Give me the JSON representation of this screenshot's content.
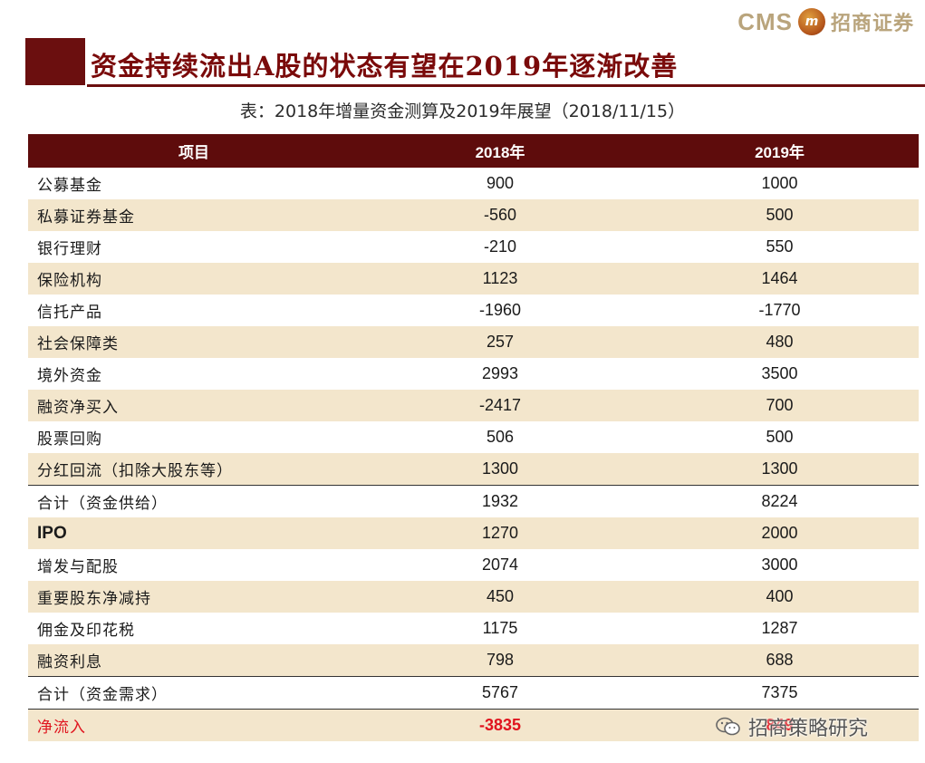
{
  "logo": {
    "latin": "CMS",
    "mark": "m",
    "chinese": "招商证券"
  },
  "title": "资金持续流出A股的状态有望在2019年逐渐改善",
  "subtitle": "表：2018年增量资金测算及2019年展望（2018/11/15）",
  "table": {
    "headers": [
      "项目",
      "2018年",
      "2019年"
    ],
    "rows": [
      [
        "公募基金",
        "900",
        "1000"
      ],
      [
        "私募证券基金",
        "-560",
        "500"
      ],
      [
        "银行理财",
        "-210",
        "550"
      ],
      [
        "保险机构",
        "1123",
        "1464"
      ],
      [
        "信托产品",
        "-1960",
        "-1770"
      ],
      [
        "社会保障类",
        "257",
        "480"
      ],
      [
        "境外资金",
        "2993",
        "3500"
      ],
      [
        "融资净买入",
        "-2417",
        "700"
      ],
      [
        "股票回购",
        "506",
        "500"
      ],
      [
        "分红回流（扣除大股东等）",
        "1300",
        "1300"
      ],
      [
        "合计（资金供给）",
        "1932",
        "8224"
      ],
      [
        "IPO",
        "1270",
        "2000"
      ],
      [
        "增发与配股",
        "2074",
        "3000"
      ],
      [
        "重要股东净减持",
        "450",
        "400"
      ],
      [
        "佣金及印花税",
        "1175",
        "1287"
      ],
      [
        "融资利息",
        "798",
        "688"
      ],
      [
        "合计（资金需求）",
        "5767",
        "7375"
      ],
      [
        "净流入",
        "-3835",
        "849"
      ]
    ]
  },
  "watermark": {
    "icon": "wechat-icon",
    "text": "招商策略研究"
  },
  "colors": {
    "brand_dark_red": "#5e0c0c",
    "title_red": "#7a0a0a",
    "stripe": "#f3e6cc",
    "negative_red": "#e0141e",
    "logo_gold": "#b9a47c"
  }
}
